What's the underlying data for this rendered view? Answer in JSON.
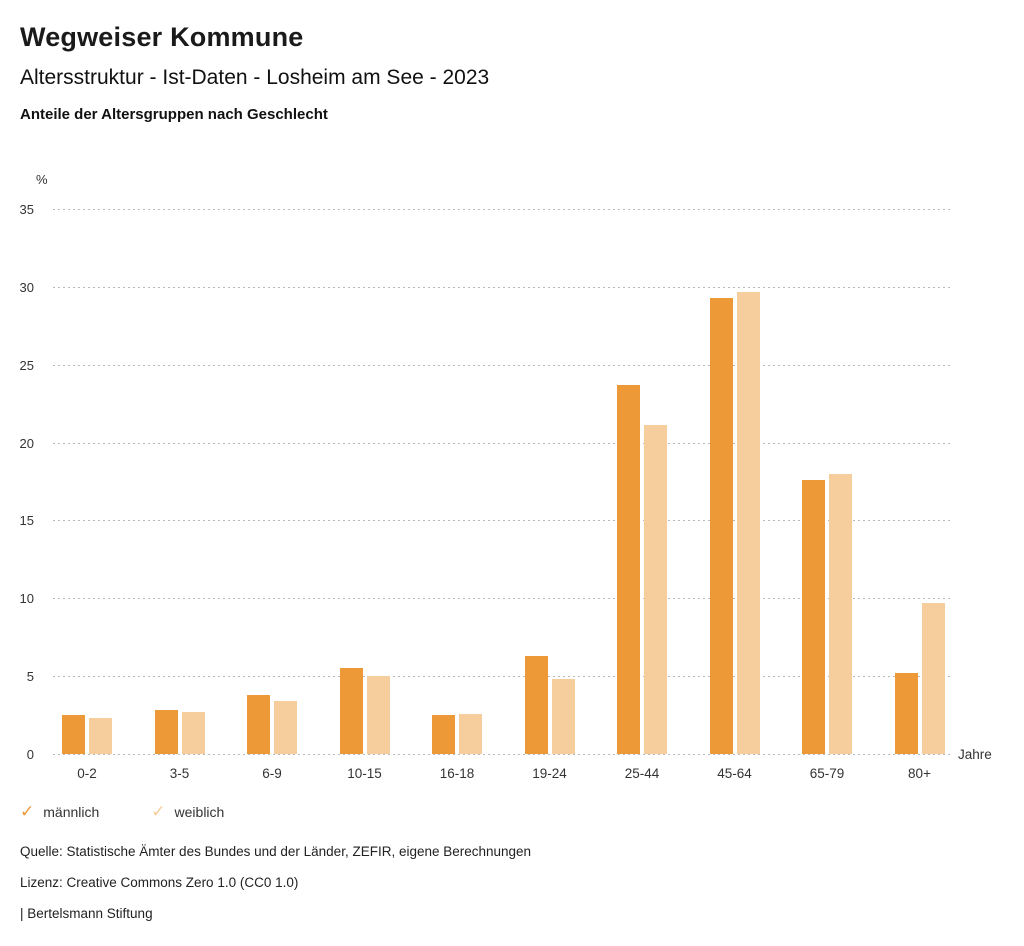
{
  "header": {
    "title": "Wegweiser Kommune",
    "subtitle": "Altersstruktur - Ist-Daten - Losheim am See - 2023",
    "subsubtitle": "Anteile der Altersgruppen nach Geschlecht"
  },
  "chart_data": {
    "type": "bar",
    "title": "Anteile der Altersgruppen nach Geschlecht",
    "xlabel": "Jahre",
    "ylabel": "%",
    "ylim": [
      0,
      35
    ],
    "ytick_step": 5,
    "grid": "horizontal-dotted",
    "legend_position": "bottom-left",
    "legend_marker": "✓",
    "categories": [
      "0-2",
      "3-5",
      "6-9",
      "10-15",
      "16-18",
      "19-24",
      "25-44",
      "45-64",
      "65-79",
      "80+"
    ],
    "series": [
      {
        "name": "männlich",
        "color": "#ED9938",
        "values": [
          2.5,
          2.8,
          3.8,
          5.5,
          2.5,
          6.3,
          23.7,
          29.3,
          17.6,
          5.2
        ]
      },
      {
        "name": "weiblich",
        "color": "#F6CE9D",
        "values": [
          2.3,
          2.7,
          3.4,
          5.0,
          2.6,
          4.8,
          21.1,
          29.7,
          18.0,
          9.7
        ]
      }
    ]
  },
  "footer": {
    "source": "Quelle: Statistische Ämter des Bundes und der Länder, ZEFIR, eigene Berechnungen",
    "license": "Lizenz: Creative Commons Zero 1.0 (CC0 1.0)",
    "attribution": "| Bertelsmann Stiftung"
  }
}
